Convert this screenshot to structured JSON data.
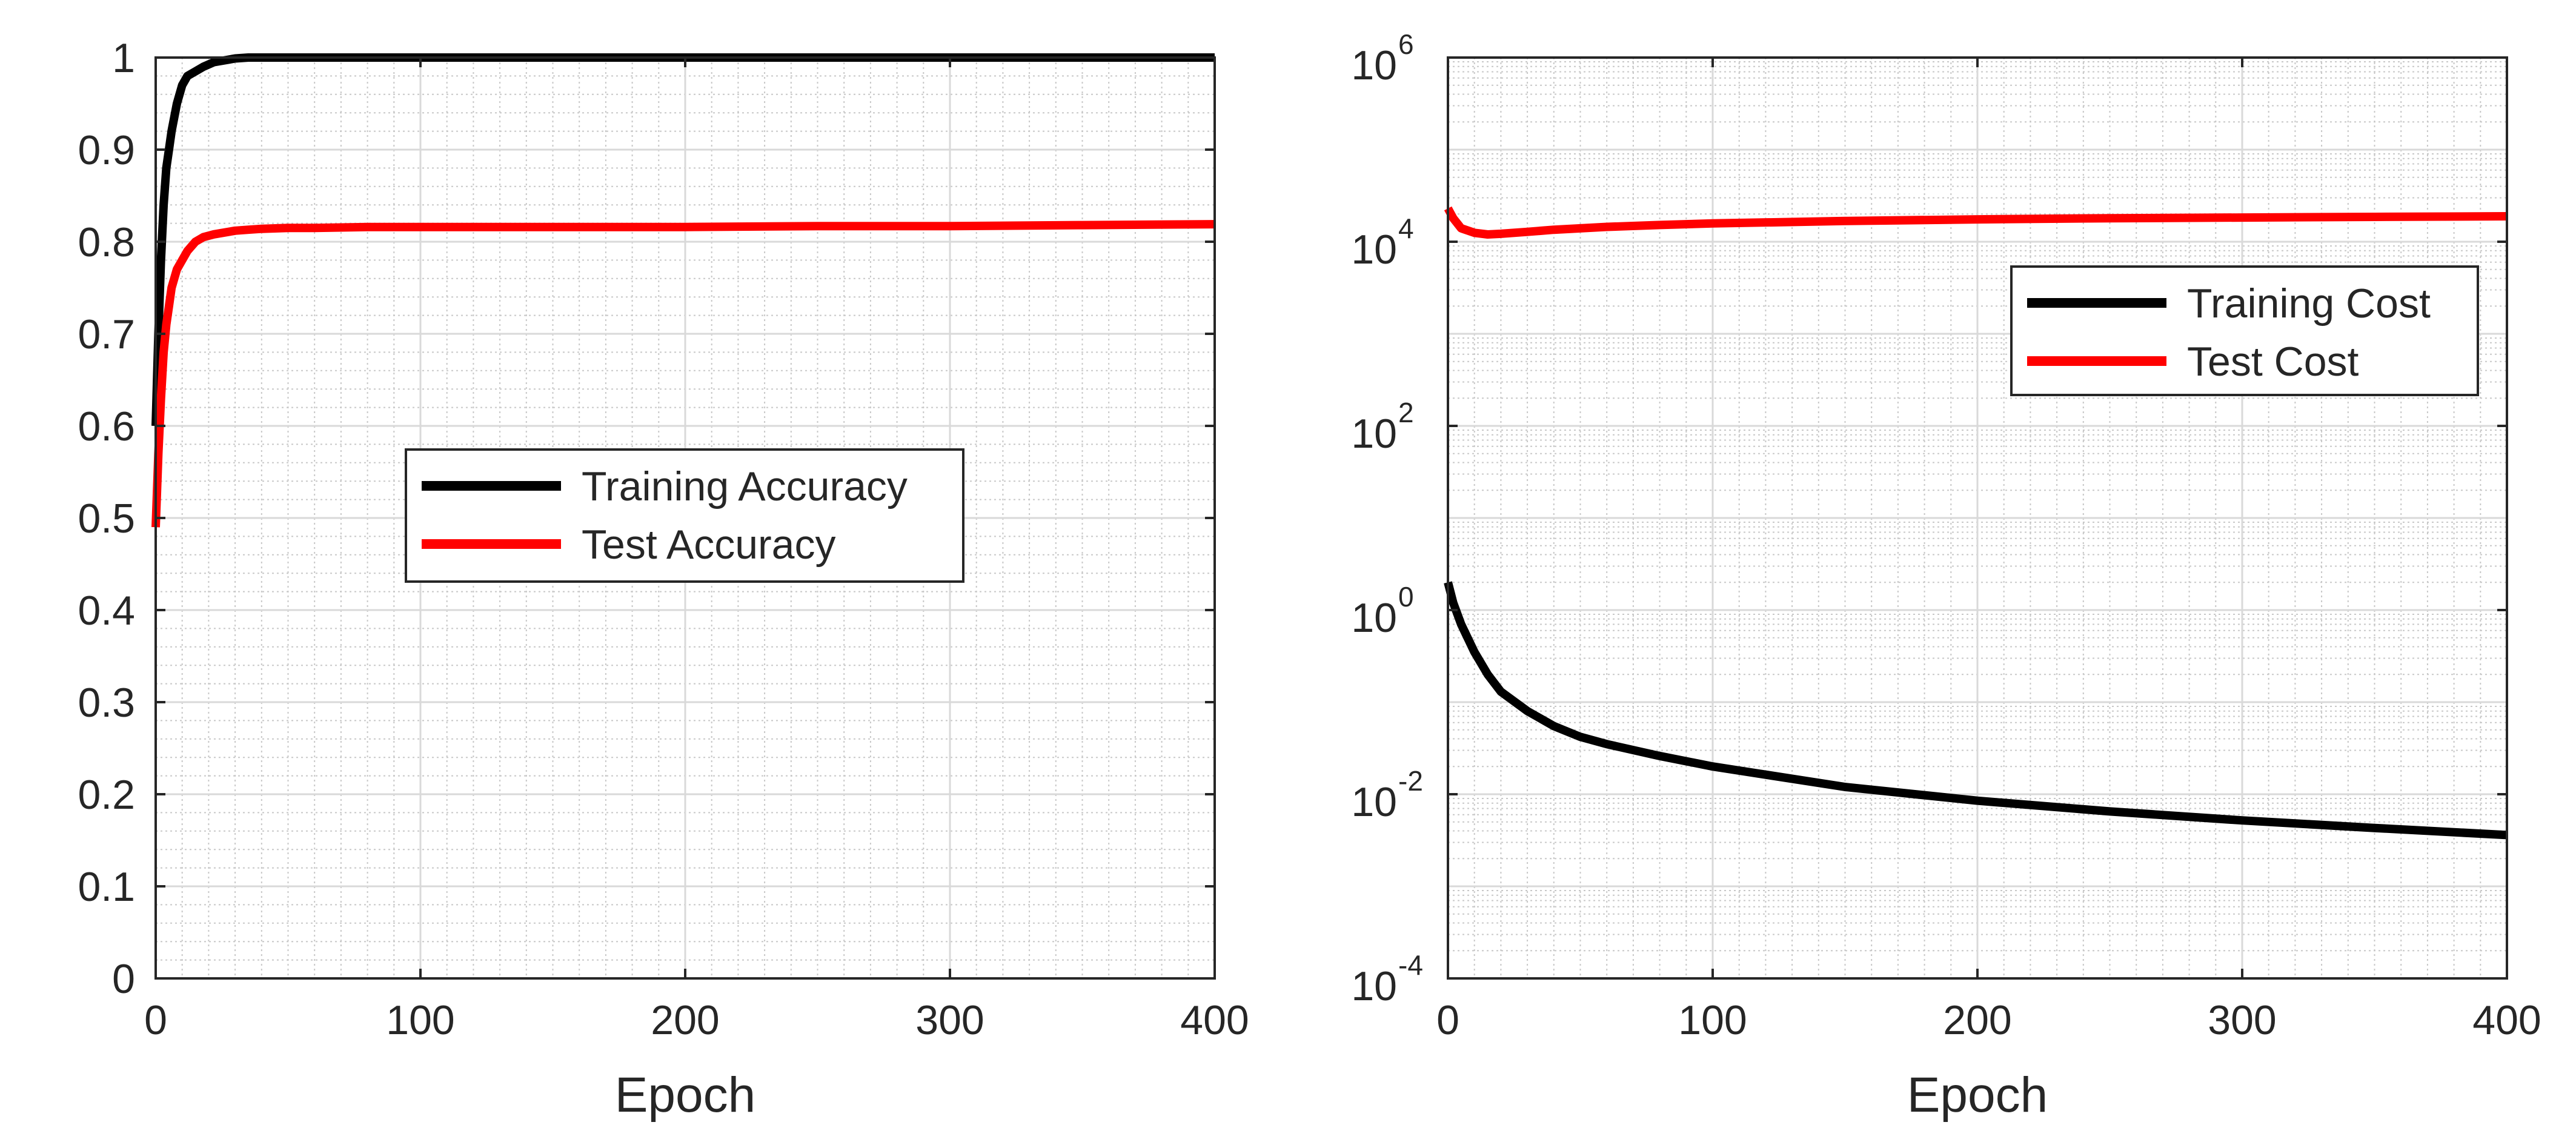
{
  "colors": {
    "training": "#000000",
    "test": "#ff0000",
    "grid_major": "#d9d9d9",
    "grid_minor": "#c8c8c8",
    "axis": "#262626"
  },
  "chart_data": [
    {
      "type": "line",
      "title": "",
      "xlabel": "Epoch",
      "ylabel": "",
      "xlim": [
        0,
        400
      ],
      "ylim": [
        0,
        1
      ],
      "yscale": "linear",
      "grid": "major and minor",
      "legend_position": "center",
      "xticks": [
        0,
        100,
        200,
        300,
        400
      ],
      "xtick_labels": [
        "0",
        "100",
        "200",
        "300",
        "400"
      ],
      "yticks": [
        0,
        0.1,
        0.2,
        0.3,
        0.4,
        0.5,
        0.6,
        0.7,
        0.8,
        0.9,
        1
      ],
      "ytick_labels": [
        "0",
        "0.1",
        "0.2",
        "0.3",
        "0.4",
        "0.5",
        "0.6",
        "0.7",
        "0.8",
        "0.9",
        "1"
      ],
      "series": [
        {
          "name": "Training Accuracy",
          "color": "#000000",
          "x": [
            0,
            1,
            2,
            3,
            4,
            5,
            6,
            8,
            10,
            12,
            15,
            18,
            22,
            26,
            30,
            35,
            40,
            60,
            100,
            200,
            300,
            400
          ],
          "y": [
            0.6,
            0.7,
            0.78,
            0.84,
            0.88,
            0.9,
            0.92,
            0.95,
            0.97,
            0.98,
            0.985,
            0.99,
            0.995,
            0.997,
            0.999,
            1.0,
            1.0,
            1.0,
            1.0,
            1.0,
            1.0,
            1.0
          ]
        },
        {
          "name": "Test Accuracy",
          "color": "#ff0000",
          "x": [
            0,
            1,
            2,
            3,
            4,
            5,
            6,
            8,
            10,
            12,
            15,
            18,
            22,
            26,
            30,
            35,
            40,
            50,
            60,
            80,
            100,
            150,
            200,
            250,
            300,
            350,
            400
          ],
          "y": [
            0.49,
            0.57,
            0.63,
            0.68,
            0.71,
            0.73,
            0.75,
            0.77,
            0.78,
            0.79,
            0.8,
            0.805,
            0.808,
            0.81,
            0.812,
            0.813,
            0.814,
            0.815,
            0.815,
            0.816,
            0.816,
            0.816,
            0.816,
            0.817,
            0.817,
            0.818,
            0.819
          ]
        }
      ]
    },
    {
      "type": "line",
      "title": "",
      "xlabel": "Epoch",
      "ylabel": "",
      "xlim": [
        0,
        400
      ],
      "ylim": [
        0.0001,
        1000000
      ],
      "yscale": "log",
      "grid": "major and minor",
      "legend_position": "upper right",
      "xticks": [
        0,
        100,
        200,
        300,
        400
      ],
      "xtick_labels": [
        "0",
        "100",
        "200",
        "300",
        "400"
      ],
      "yticks": [
        0.0001,
        0.01,
        1,
        100,
        10000,
        1000000
      ],
      "ytick_labels": [
        {
          "base": "10",
          "exp": "-4"
        },
        {
          "base": "10",
          "exp": "-2"
        },
        {
          "base": "10",
          "exp": "0"
        },
        {
          "base": "10",
          "exp": "2"
        },
        {
          "base": "10",
          "exp": "4"
        },
        {
          "base": "10",
          "exp": "6"
        }
      ],
      "series": [
        {
          "name": "Training Cost",
          "color": "#000000",
          "x": [
            0,
            2,
            5,
            10,
            15,
            20,
            30,
            40,
            50,
            60,
            80,
            100,
            150,
            200,
            250,
            300,
            350,
            400
          ],
          "y": [
            2.0,
            1.2,
            0.7,
            0.35,
            0.2,
            0.13,
            0.08,
            0.055,
            0.042,
            0.035,
            0.026,
            0.02,
            0.012,
            0.0085,
            0.0065,
            0.0052,
            0.0043,
            0.0036
          ]
        },
        {
          "name": "Test Cost",
          "color": "#ff0000",
          "x": [
            0,
            2,
            5,
            10,
            15,
            20,
            30,
            40,
            60,
            80,
            100,
            150,
            200,
            250,
            300,
            350,
            400
          ],
          "y": [
            23000,
            18000,
            14000,
            12500,
            12000,
            12200,
            12800,
            13500,
            14500,
            15200,
            15800,
            16800,
            17500,
            18000,
            18300,
            18600,
            18900
          ]
        }
      ]
    }
  ]
}
